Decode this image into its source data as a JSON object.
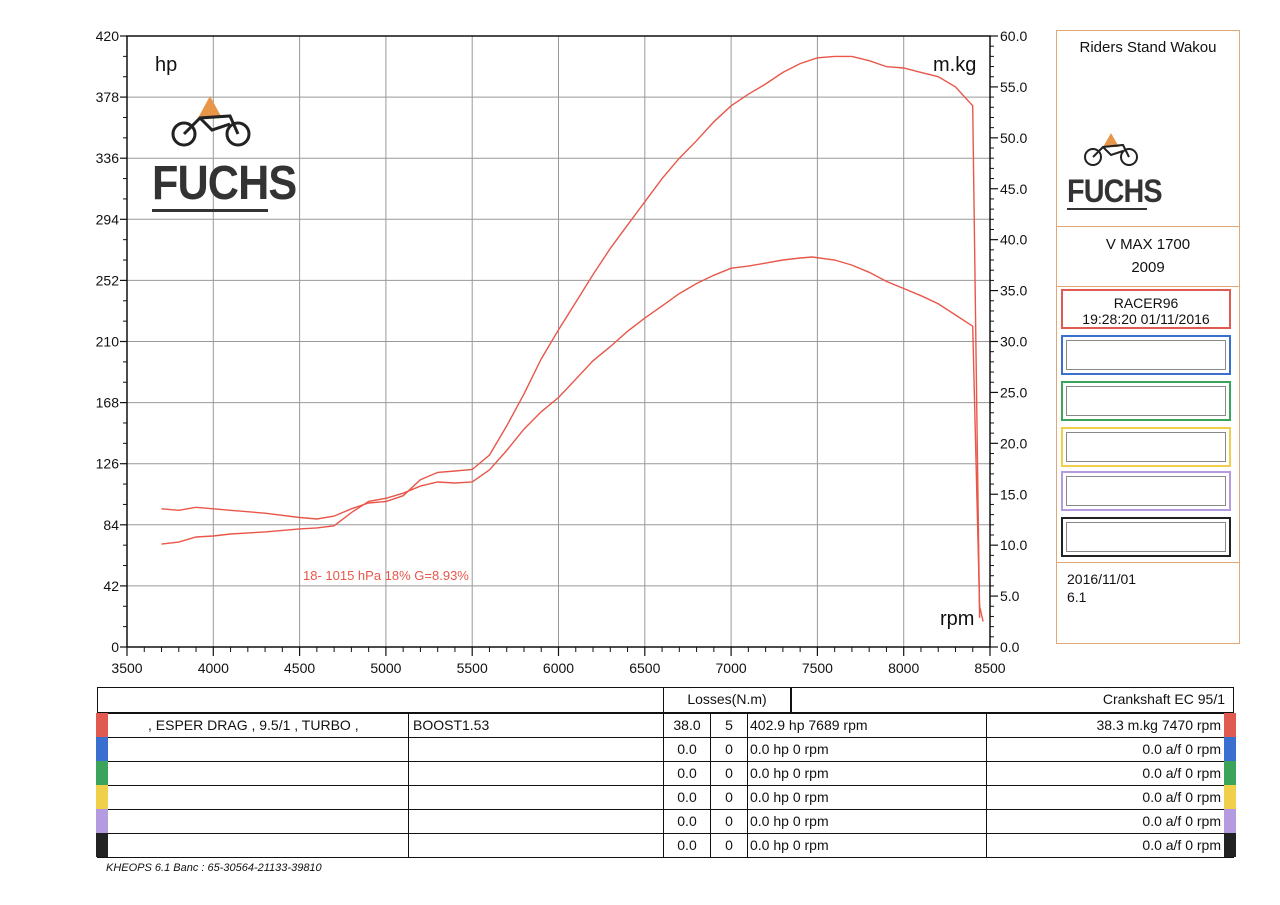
{
  "chart_data": {
    "type": "line",
    "xlabel": "rpm",
    "ylabel_left": "hp",
    "ylabel_right": "m.kg",
    "x_ticks": [
      3500,
      4000,
      4500,
      5000,
      5500,
      6000,
      6500,
      7000,
      7500,
      8000,
      8500
    ],
    "y_left_ticks": [
      0,
      42,
      84,
      126,
      168,
      210,
      252,
      294,
      336,
      378,
      420
    ],
    "y_right_ticks": [
      "0.0",
      "5.0",
      "10.0",
      "15.0",
      "20.0",
      "25.0",
      "30.0",
      "35.0",
      "40.0",
      "45.0",
      "50.0",
      "55.0",
      "60.0"
    ],
    "xlim": [
      3500,
      8500
    ],
    "ylim_left": [
      0,
      420
    ],
    "ylim_right": [
      0,
      60
    ],
    "grid": true,
    "condition_text": "18-  1015 hPa  18%    G=8.93%",
    "series": [
      {
        "axis": "left",
        "color": "#e8574a",
        "points": [
          [
            3700,
            95
          ],
          [
            3800,
            94
          ],
          [
            3900,
            96
          ],
          [
            4000,
            95
          ],
          [
            4100,
            94
          ],
          [
            4300,
            92
          ],
          [
            4500,
            89
          ],
          [
            4600,
            88
          ],
          [
            4700,
            90
          ],
          [
            4800,
            95
          ],
          [
            4900,
            99
          ],
          [
            5000,
            100
          ],
          [
            5100,
            104
          ],
          [
            5200,
            115
          ],
          [
            5300,
            120
          ],
          [
            5400,
            121
          ],
          [
            5500,
            122
          ],
          [
            5600,
            132
          ],
          [
            5700,
            152
          ],
          [
            5800,
            174
          ],
          [
            5900,
            198
          ],
          [
            6000,
            218
          ],
          [
            6100,
            237
          ],
          [
            6200,
            256
          ],
          [
            6300,
            274
          ],
          [
            6400,
            290
          ],
          [
            6500,
            306
          ],
          [
            6600,
            322
          ],
          [
            6700,
            336
          ],
          [
            6800,
            348
          ],
          [
            6900,
            361
          ],
          [
            7000,
            372
          ],
          [
            7100,
            380
          ],
          [
            7200,
            387
          ],
          [
            7300,
            395
          ],
          [
            7400,
            401
          ],
          [
            7500,
            405
          ],
          [
            7600,
            406
          ],
          [
            7700,
            406
          ],
          [
            7800,
            403
          ],
          [
            7900,
            399
          ],
          [
            8000,
            398
          ],
          [
            8100,
            395
          ],
          [
            8200,
            392
          ],
          [
            8300,
            385
          ],
          [
            8400,
            372
          ],
          [
            8440,
            20
          ]
        ]
      },
      {
        "axis": "right",
        "color": "#e8574a",
        "points": [
          [
            3700,
            10.1
          ],
          [
            3800,
            10.3
          ],
          [
            3900,
            10.8
          ],
          [
            4000,
            10.9
          ],
          [
            4100,
            11.1
          ],
          [
            4300,
            11.3
          ],
          [
            4500,
            11.6
          ],
          [
            4600,
            11.7
          ],
          [
            4700,
            11.9
          ],
          [
            4800,
            13.2
          ],
          [
            4900,
            14.3
          ],
          [
            5000,
            14.6
          ],
          [
            5100,
            15.1
          ],
          [
            5200,
            15.8
          ],
          [
            5300,
            16.2
          ],
          [
            5400,
            16.1
          ],
          [
            5500,
            16.2
          ],
          [
            5600,
            17.4
          ],
          [
            5700,
            19.3
          ],
          [
            5800,
            21.4
          ],
          [
            5900,
            23.1
          ],
          [
            6000,
            24.5
          ],
          [
            6100,
            26.3
          ],
          [
            6200,
            28.1
          ],
          [
            6300,
            29.5
          ],
          [
            6400,
            31.0
          ],
          [
            6500,
            32.3
          ],
          [
            6600,
            33.5
          ],
          [
            6700,
            34.7
          ],
          [
            6800,
            35.7
          ],
          [
            6900,
            36.5
          ],
          [
            7000,
            37.2
          ],
          [
            7100,
            37.4
          ],
          [
            7200,
            37.7
          ],
          [
            7300,
            38.0
          ],
          [
            7400,
            38.2
          ],
          [
            7470,
            38.3
          ],
          [
            7600,
            38.0
          ],
          [
            7700,
            37.5
          ],
          [
            7800,
            36.8
          ],
          [
            7900,
            35.9
          ],
          [
            8000,
            35.2
          ],
          [
            8100,
            34.5
          ],
          [
            8200,
            33.7
          ],
          [
            8300,
            32.6
          ],
          [
            8400,
            31.5
          ],
          [
            8440,
            4.0
          ],
          [
            8460,
            2.5
          ]
        ]
      }
    ]
  },
  "brand": {
    "logo_text": "FUCHS",
    "logo_color": "#333333",
    "accent": "#e8974a"
  },
  "panel": {
    "site": "Riders Stand Wakou",
    "bike_model": "V MAX 1700",
    "bike_year": "2009",
    "run_name": "RACER96",
    "run_time": "19:28:20  01/11/2016",
    "date": "2016/11/01",
    "version": "6.1",
    "run_colors": [
      "#e05a50",
      "#3a6fd0",
      "#3ca35a",
      "#f0d04a",
      "#b49be0",
      "#222222"
    ]
  },
  "table": {
    "losses_header": "Losses(N.m)",
    "crank_header": "Crankshaft EC 95/1",
    "rows": [
      {
        "desc": ", ESPER DRAG , 9.5/1 , TURBO ,",
        "boost": "BOOST1.53",
        "loss": "38.0",
        "n": "5",
        "hp": "402.9 hp 7689 rpm",
        "torque": "38.3 m.kg 7470 rpm"
      },
      {
        "desc": "",
        "boost": "",
        "loss": "0.0",
        "n": "0",
        "hp": "0.0 hp 0 rpm",
        "torque": "0.0 a/f 0 rpm"
      },
      {
        "desc": "",
        "boost": "",
        "loss": "0.0",
        "n": "0",
        "hp": "0.0 hp 0 rpm",
        "torque": "0.0 a/f 0 rpm"
      },
      {
        "desc": "",
        "boost": "",
        "loss": "0.0",
        "n": "0",
        "hp": "0.0 hp 0 rpm",
        "torque": "0.0 a/f 0 rpm"
      },
      {
        "desc": "",
        "boost": "",
        "loss": "0.0",
        "n": "0",
        "hp": "0.0 hp 0 rpm",
        "torque": "0.0 a/f 0 rpm"
      },
      {
        "desc": "",
        "boost": "",
        "loss": "0.0",
        "n": "0",
        "hp": "0.0 hp 0 rpm",
        "torque": "0.0 a/f 0 rpm"
      }
    ]
  },
  "footer": "KHEOPS 6.1  Banc : 65-30564-21133-39810"
}
